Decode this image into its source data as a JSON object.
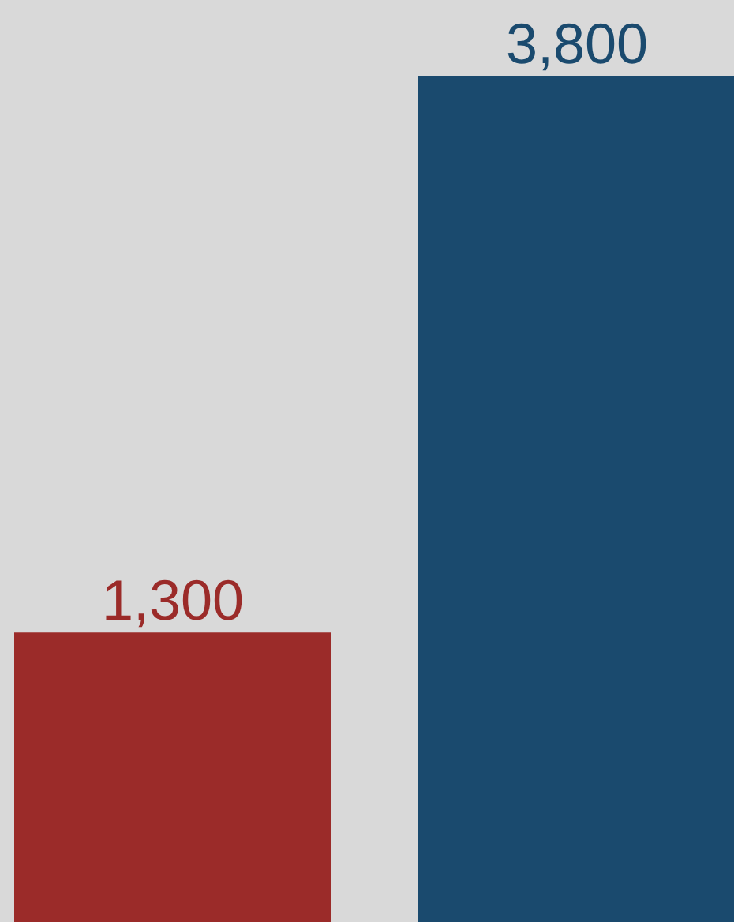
{
  "chart_data": {
    "type": "bar",
    "categories": [
      null,
      null
    ],
    "values": [
      1300,
      3800
    ],
    "colors": [
      "#9b2b29",
      "#1a4a6e"
    ],
    "value_labels": [
      "1,300",
      "3,800"
    ],
    "tick_labels": false,
    "grid": false,
    "legend": false
  }
}
